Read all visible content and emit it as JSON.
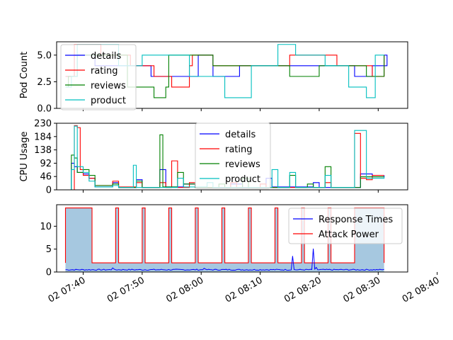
{
  "chart_data": [
    {
      "type": "line",
      "drawstyle": "steps",
      "ylabel": "Pod Count",
      "ylim": [
        0,
        6.25
      ],
      "yticks": [
        0.0,
        2.5,
        5.0
      ],
      "ytick_labels": [
        "0.0",
        "2.5",
        "5.0"
      ],
      "legend": {
        "placement": "upper-left"
      },
      "series": [
        {
          "name": "details",
          "color": "#0000ff",
          "points": [
            [
              0,
              3
            ],
            [
              1.5,
              5
            ],
            [
              5,
              4
            ],
            [
              14.5,
              3
            ],
            [
              22.5,
              5
            ],
            [
              25,
              3
            ],
            [
              29.5,
              4
            ],
            [
              49,
              3
            ],
            [
              52,
              4
            ],
            [
              53.5,
              4
            ],
            [
              54.5,
              5
            ]
          ]
        },
        {
          "name": "rating",
          "color": "#ff0000",
          "points": [
            [
              0,
              3
            ],
            [
              1.5,
              6
            ],
            [
              6,
              5
            ],
            [
              11,
              4
            ],
            [
              15,
              3
            ],
            [
              18,
              2
            ],
            [
              21,
              4
            ],
            [
              21.5,
              5
            ],
            [
              25,
              4
            ],
            [
              38,
              5
            ],
            [
              46,
              4
            ],
            [
              52,
              3
            ],
            [
              54,
              5
            ]
          ]
        },
        {
          "name": "reviews",
          "color": "#008000",
          "points": [
            [
              0,
              2
            ],
            [
              0.5,
              3
            ],
            [
              2,
              5
            ],
            [
              10.5,
              2
            ],
            [
              15,
              1
            ],
            [
              17,
              2
            ],
            [
              17.5,
              5
            ],
            [
              25,
              4
            ],
            [
              38,
              3
            ],
            [
              43,
              4
            ],
            [
              51,
              3
            ],
            [
              54,
              5
            ]
          ]
        },
        {
          "name": "product",
          "color": "#00bfbf",
          "points": [
            [
              0,
              2
            ],
            [
              1,
              3
            ],
            [
              2,
              6
            ],
            [
              9,
              4
            ],
            [
              13,
              5
            ],
            [
              21,
              3
            ],
            [
              27,
              1
            ],
            [
              31.5,
              4
            ],
            [
              36,
              6
            ],
            [
              39,
              5
            ],
            [
              44,
              4
            ],
            [
              48,
              2
            ],
            [
              51,
              1
            ],
            [
              52.5,
              5
            ]
          ]
        }
      ],
      "xlim": [
        -1.5,
        58
      ]
    },
    {
      "type": "line",
      "drawstyle": "steps",
      "ylabel": "CPU Usage",
      "ylim": [
        0,
        230
      ],
      "yticks": [
        0,
        46,
        92,
        138,
        184,
        230
      ],
      "ytick_labels": [
        "0",
        "46",
        "92",
        "138",
        "184",
        "230"
      ],
      "legend": {
        "placement": "upper-center"
      },
      "series": [
        {
          "name": "details",
          "color": "#0000ff",
          "points": [
            [
              0,
              0
            ],
            [
              1,
              92
            ],
            [
              1.5,
              80
            ],
            [
              2,
              60
            ],
            [
              3,
              55
            ],
            [
              4,
              40
            ],
            [
              5,
              10
            ],
            [
              8,
              25
            ],
            [
              9,
              8
            ],
            [
              12,
              35
            ],
            [
              13,
              8
            ],
            [
              16,
              70
            ],
            [
              17,
              10
            ],
            [
              20,
              20
            ],
            [
              22,
              8
            ],
            [
              25,
              8
            ],
            [
              28,
              20
            ],
            [
              30,
              8
            ],
            [
              34,
              40
            ],
            [
              35,
              10
            ],
            [
              42,
              25
            ],
            [
              43,
              8
            ],
            [
              50,
              55
            ],
            [
              52,
              45
            ],
            [
              54,
              50
            ]
          ]
        },
        {
          "name": "rating",
          "color": "#ff0000",
          "points": [
            [
              0,
              0
            ],
            [
              1.5,
              222
            ],
            [
              2,
              215
            ],
            [
              2.5,
              70
            ],
            [
              3,
              50
            ],
            [
              4,
              40
            ],
            [
              5,
              15
            ],
            [
              8,
              30
            ],
            [
              9,
              10
            ],
            [
              12,
              25
            ],
            [
              13,
              8
            ],
            [
              16,
              25
            ],
            [
              17,
              8
            ],
            [
              18,
              100
            ],
            [
              19,
              8
            ],
            [
              21,
              25
            ],
            [
              22,
              8
            ],
            [
              28,
              25
            ],
            [
              29,
              8
            ],
            [
              33,
              20
            ],
            [
              34,
              8
            ],
            [
              44,
              25
            ],
            [
              45,
              8
            ],
            [
              49,
              195
            ],
            [
              50,
              40
            ],
            [
              51,
              35
            ],
            [
              52,
              50
            ]
          ]
        },
        {
          "name": "reviews",
          "color": "#008000",
          "points": [
            [
              0,
              0
            ],
            [
              1,
              120
            ],
            [
              1.5,
              110
            ],
            [
              2,
              60
            ],
            [
              3,
              70
            ],
            [
              4,
              50
            ],
            [
              5,
              15
            ],
            [
              8,
              20
            ],
            [
              9,
              8
            ],
            [
              12,
              30
            ],
            [
              13,
              8
            ],
            [
              16,
              190
            ],
            [
              16.5,
              10
            ],
            [
              19,
              60
            ],
            [
              20,
              20
            ],
            [
              22,
              8
            ],
            [
              26,
              20
            ],
            [
              27,
              8
            ],
            [
              30,
              40
            ],
            [
              31,
              8
            ],
            [
              38,
              50
            ],
            [
              39,
              8
            ],
            [
              41,
              20
            ],
            [
              42,
              8
            ],
            [
              44,
              80
            ],
            [
              45,
              8
            ],
            [
              50,
              45
            ],
            [
              54,
              45
            ]
          ]
        },
        {
          "name": "product",
          "color": "#00bfbf",
          "points": [
            [
              0,
              0
            ],
            [
              1,
              70
            ],
            [
              1.5,
              220
            ],
            [
              2,
              80
            ],
            [
              3,
              60
            ],
            [
              4,
              30
            ],
            [
              5,
              10
            ],
            [
              8,
              15
            ],
            [
              9,
              8
            ],
            [
              11.5,
              85
            ],
            [
              12,
              8
            ],
            [
              19,
              40
            ],
            [
              20,
              10
            ],
            [
              24,
              25
            ],
            [
              25,
              8
            ],
            [
              35,
              70
            ],
            [
              36,
              8
            ],
            [
              38,
              60
            ],
            [
              39,
              8
            ],
            [
              44,
              50
            ],
            [
              45,
              8
            ],
            [
              49,
              205
            ],
            [
              51,
              40
            ],
            [
              54,
              45
            ]
          ]
        }
      ],
      "xlim": [
        -1.5,
        58
      ]
    },
    {
      "type": "line",
      "x_unit": "minutes",
      "xlabel": "",
      "ylim": [
        0,
        14.7
      ],
      "yticks": [
        0,
        5,
        10
      ],
      "ytick_labels": [
        "0",
        "5",
        "10"
      ],
      "xticks": [
        3,
        13,
        23,
        33,
        43,
        53,
        63
      ],
      "xtick_labels": [
        "02 07:40",
        "02 07:50",
        "02 08:00",
        "02 08:10",
        "02 08:20",
        "02 08:30",
        "02 08:40"
      ],
      "legend": {
        "placement": "upper-right"
      },
      "attack_power": {
        "name": "Attack Power",
        "color": "#ff0000",
        "fill": "#a6c8e0",
        "low": 2,
        "high": 14,
        "on_intervals": [
          [
            0,
            4.5
          ],
          [
            8.5,
            9
          ],
          [
            13,
            13.5
          ],
          [
            17.5,
            18
          ],
          [
            22,
            22.5
          ],
          [
            26.5,
            27
          ],
          [
            31,
            31.5
          ],
          [
            35.5,
            36
          ],
          [
            40,
            40.5
          ],
          [
            44.5,
            45
          ],
          [
            49,
            54
          ]
        ]
      },
      "response_times": {
        "name": "Response Times",
        "color": "#0000ff",
        "baseline": 0.5,
        "spikes": [
          [
            8,
            0.9
          ],
          [
            23.5,
            0.8
          ],
          [
            38.5,
            3.5
          ],
          [
            42,
            5.1
          ],
          [
            42.5,
            1.0
          ]
        ]
      },
      "xlim": [
        -1.5,
        58
      ]
    }
  ]
}
